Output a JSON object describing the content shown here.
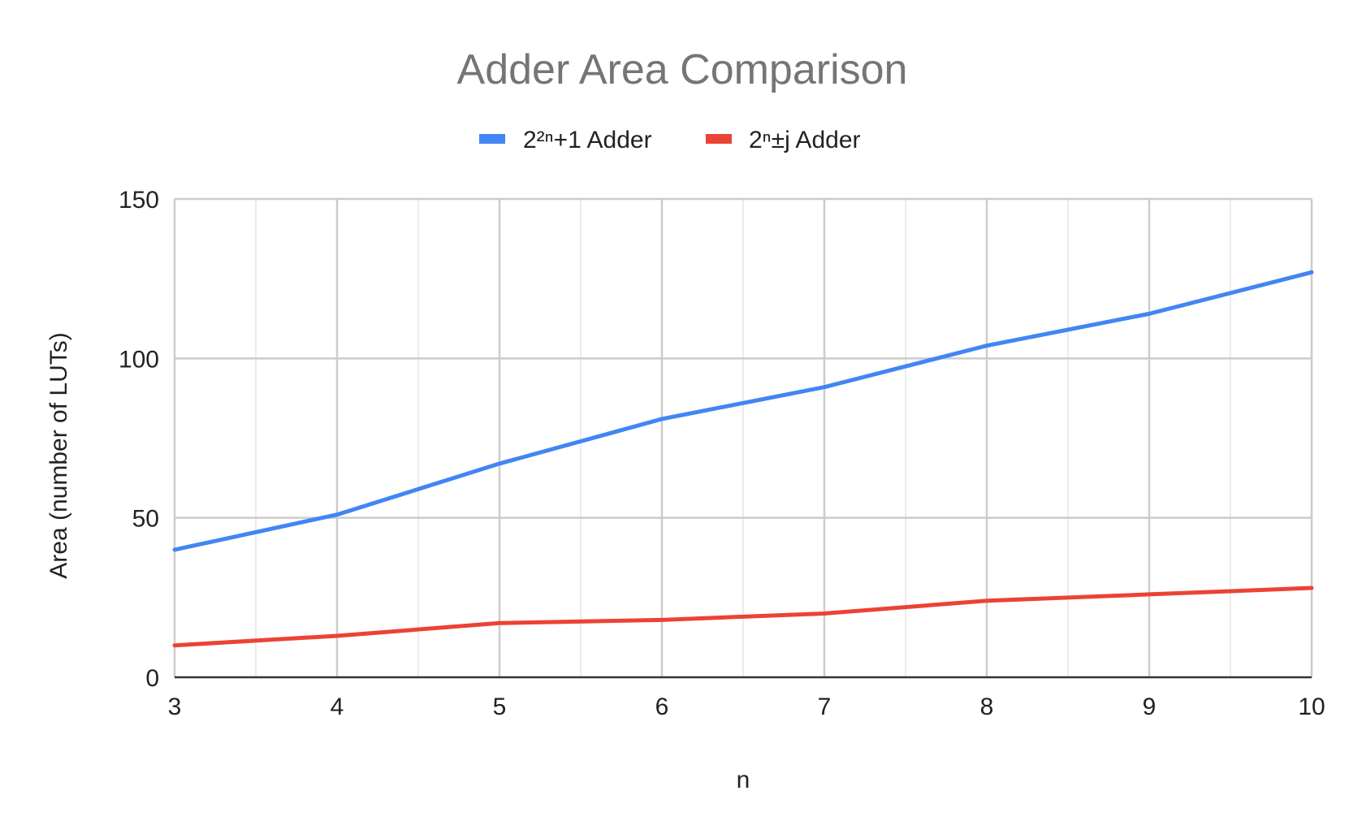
{
  "chart_data": {
    "type": "line",
    "title": "Adder Area Comparison",
    "xlabel": "n",
    "ylabel": "Area (number of LUTs)",
    "x": [
      3,
      4,
      5,
      6,
      7,
      8,
      9,
      10
    ],
    "xlim": [
      3,
      10
    ],
    "ylim": [
      0,
      150
    ],
    "x_ticks": [
      "3",
      "4",
      "5",
      "6",
      "7",
      "8",
      "9",
      "10"
    ],
    "y_ticks": [
      "0",
      "50",
      "100",
      "150"
    ],
    "grid": true,
    "legend_position": "top",
    "series": [
      {
        "name": "2²ⁿ+1 Adder",
        "color": "#4285f4",
        "values": [
          40,
          51,
          67,
          81,
          91,
          104,
          114,
          127
        ]
      },
      {
        "name": "2ⁿ±j Adder",
        "color": "#ea4335",
        "values": [
          10,
          13,
          17,
          18,
          20,
          24,
          26,
          28
        ]
      }
    ]
  }
}
